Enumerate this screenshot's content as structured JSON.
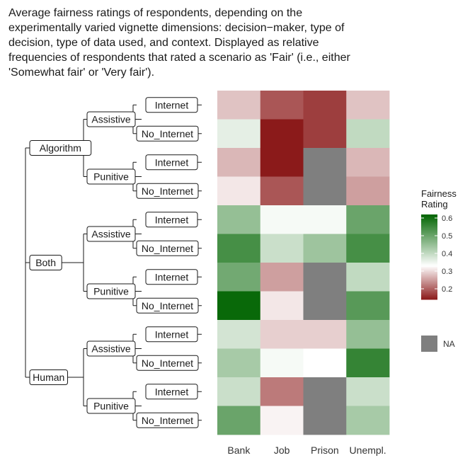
{
  "title_lines": [
    "Average fairness ratings of respondents, depending on the",
    "experimentally varied vignette dimensions: decision−maker, type of",
    "decision, type of data used, and context. Displayed as relative",
    "frequencies of respondents that rated a scenario as 'Fair' (i.e., either",
    "'Somewhat fair' or 'Very fair')."
  ],
  "chart_data": {
    "type": "heatmap",
    "title": "Average fairness ratings of respondents, depending on the experimentally varied vignette dimensions: decision−maker, type of decision, type of data used, and context. Displayed as relative frequencies of respondents that rated a scenario as 'Fair' (i.e., either 'Somewhat fair' or 'Very fair').",
    "columns": [
      "Bank",
      "Job",
      "Prison",
      "Unempl."
    ],
    "tree": [
      {
        "label": "Algorithm",
        "children": [
          {
            "label": "Assistive",
            "children": [
              "Internet",
              "No_Internet"
            ]
          },
          {
            "label": "Punitive",
            "children": [
              "Internet",
              "No_Internet"
            ]
          }
        ]
      },
      {
        "label": "Both",
        "children": [
          {
            "label": "Assistive",
            "children": [
              "Internet",
              "No_Internet"
            ]
          },
          {
            "label": "Punitive",
            "children": [
              "Internet",
              "No_Internet"
            ]
          }
        ]
      },
      {
        "label": "Human",
        "children": [
          {
            "label": "Assistive",
            "children": [
              "Internet",
              "No_Internet"
            ]
          },
          {
            "label": "Punitive",
            "children": [
              "Internet",
              "No_Internet"
            ]
          }
        ]
      }
    ],
    "values": [
      [
        0.28,
        0.19,
        0.17,
        0.28
      ],
      [
        0.36,
        0.14,
        0.17,
        0.4
      ],
      [
        0.27,
        0.14,
        null,
        0.27
      ],
      [
        0.31,
        0.19,
        null,
        0.25
      ],
      [
        0.45,
        0.34,
        0.34,
        0.5
      ],
      [
        0.54,
        0.39,
        0.44,
        0.54
      ],
      [
        0.49,
        0.25,
        null,
        0.4
      ],
      [
        0.61,
        0.31,
        null,
        0.52
      ],
      [
        0.38,
        0.29,
        0.29,
        0.45
      ],
      [
        0.43,
        0.34,
        0.33,
        0.56
      ],
      [
        0.39,
        0.22,
        null,
        0.39
      ],
      [
        0.5,
        0.32,
        null,
        0.43
      ]
    ],
    "legend": {
      "title": "Fairness\nRating",
      "ticks": [
        0.6,
        0.5,
        0.4,
        0.3,
        0.2
      ],
      "range": [
        0.14,
        0.62
      ],
      "na_label": "NA",
      "na_color": "#7f7f7f",
      "colors": {
        "low": "#8b1a1a",
        "mid": "#ffffff",
        "high": "#006400"
      },
      "midpoint": 0.33
    }
  }
}
